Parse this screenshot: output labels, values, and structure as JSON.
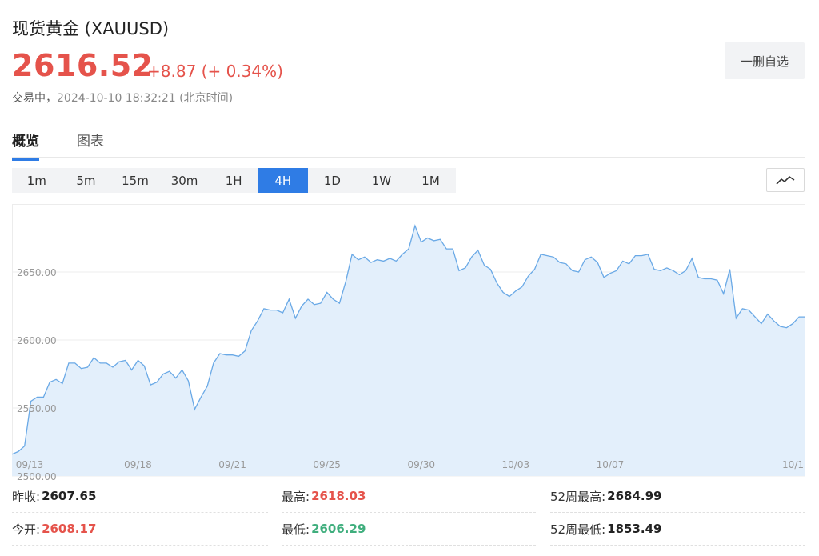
{
  "header": {
    "title": "现货黄金 (XAUUSD)",
    "price": "2616.52",
    "change": "+8.87 (+ 0.34%)",
    "status": "交易中，",
    "time": "2024-10-10 18:32:21 (北京时间)",
    "remove_button": "一删自选"
  },
  "tabs": [
    {
      "label": "概览",
      "active": true
    },
    {
      "label": "图表",
      "active": false
    }
  ],
  "intervals": [
    {
      "label": "1m",
      "active": false
    },
    {
      "label": "5m",
      "active": false
    },
    {
      "label": "15m",
      "active": false
    },
    {
      "label": "30m",
      "active": false
    },
    {
      "label": "1H",
      "active": false
    },
    {
      "label": "4H",
      "active": true
    },
    {
      "label": "1D",
      "active": false
    },
    {
      "label": "1W",
      "active": false
    },
    {
      "label": "1M",
      "active": false
    }
  ],
  "chart_toggle_icon": "line-chart-icon",
  "colors": {
    "up": "#e5534b",
    "down": "#3fae7d",
    "accent": "#2f7ce5",
    "line": "#6aa9e6",
    "fill": "#e3effb"
  },
  "chart_data": {
    "type": "area",
    "ylim": [
      2500,
      2700
    ],
    "ytick_labels": [
      "2650.00",
      "2600.00",
      "2550.00",
      "2500.00"
    ],
    "yticks": [
      2650,
      2600,
      2550,
      2500
    ],
    "xtick_labels": [
      "09/13",
      "09/18",
      "09/21",
      "09/25",
      "09/30",
      "10/03",
      "10/07",
      "10/1"
    ],
    "xtick_index": [
      0,
      20,
      35,
      50,
      65,
      80,
      95,
      110
    ],
    "grid": true,
    "values": [
      2516,
      2518,
      2522,
      2555,
      2558,
      2558,
      2569,
      2571,
      2568,
      2583,
      2583,
      2579,
      2580,
      2587,
      2583,
      2583,
      2580,
      2584,
      2585,
      2578,
      2585,
      2581,
      2567,
      2569,
      2575,
      2577,
      2572,
      2578,
      2570,
      2549,
      2558,
      2566,
      2583,
      2590,
      2589,
      2589,
      2588,
      2592,
      2607,
      2614,
      2623,
      2622,
      2622,
      2620,
      2630,
      2616,
      2625,
      2630,
      2626,
      2627,
      2635,
      2630,
      2627,
      2643,
      2663,
      2659,
      2661,
      2657,
      2659,
      2658,
      2660,
      2658,
      2663,
      2667,
      2684,
      2672,
      2675,
      2673,
      2674,
      2667,
      2667,
      2651,
      2653,
      2661,
      2666,
      2655,
      2652,
      2642,
      2635,
      2632,
      2636,
      2639,
      2647,
      2652,
      2663,
      2662,
      2661,
      2657,
      2656,
      2651,
      2650,
      2659,
      2661,
      2657,
      2646,
      2649,
      2651,
      2658,
      2656,
      2662,
      2662,
      2663,
      2652,
      2651,
      2653,
      2651,
      2648,
      2651,
      2660,
      2646,
      2645,
      2645,
      2644,
      2634,
      2652,
      2616,
      2623,
      2622,
      2617,
      2612,
      2619,
      2614,
      2610,
      2609,
      2612,
      2617,
      2617
    ]
  },
  "stats": [
    {
      "label": "昨收:",
      "value": "2607.65",
      "color": "#222222"
    },
    {
      "label": "最高:",
      "value": "2618.03",
      "color": "#e5534b"
    },
    {
      "label": "52周最高:",
      "value": "2684.99",
      "color": "#222222"
    },
    {
      "label": "今开:",
      "value": "2608.17",
      "color": "#e5534b"
    },
    {
      "label": "最低:",
      "value": "2606.29",
      "color": "#3fae7d"
    },
    {
      "label": "52周最低:",
      "value": "1853.49",
      "color": "#222222"
    }
  ]
}
